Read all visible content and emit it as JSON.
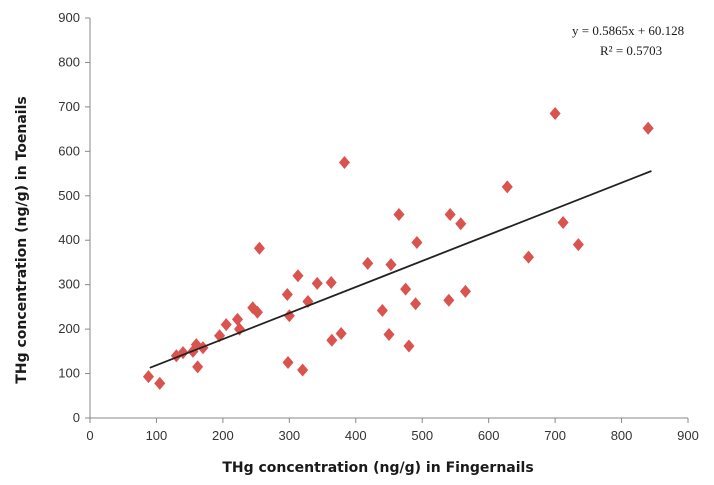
{
  "chart_data": {
    "type": "scatter",
    "xlabel": "THg concentration (ng/g) in Fingernails",
    "ylabel": "THg concentration (ng/g) in Toenails",
    "xlim": [
      0,
      900
    ],
    "ylim": [
      0,
      900
    ],
    "xticks": [
      "0",
      "100",
      "200",
      "300",
      "400",
      "500",
      "600",
      "700",
      "800",
      "900"
    ],
    "yticks": [
      "0",
      "100",
      "200",
      "300",
      "400",
      "500",
      "600",
      "700",
      "800",
      "900"
    ],
    "grid": false,
    "marker_color": "#d9534f",
    "trendline": {
      "slope": 0.5865,
      "intercept": 60.128,
      "x_range": [
        90,
        845
      ],
      "equation": "y = 0.5865x  + 60.128",
      "r_squared": "R² = 0.5703"
    },
    "points": [
      {
        "x": 88,
        "y": 93
      },
      {
        "x": 105,
        "y": 78
      },
      {
        "x": 130,
        "y": 140
      },
      {
        "x": 140,
        "y": 147
      },
      {
        "x": 155,
        "y": 150
      },
      {
        "x": 160,
        "y": 165
      },
      {
        "x": 162,
        "y": 115
      },
      {
        "x": 170,
        "y": 158
      },
      {
        "x": 195,
        "y": 185
      },
      {
        "x": 205,
        "y": 210
      },
      {
        "x": 222,
        "y": 222
      },
      {
        "x": 225,
        "y": 200
      },
      {
        "x": 245,
        "y": 248
      },
      {
        "x": 252,
        "y": 238
      },
      {
        "x": 255,
        "y": 382
      },
      {
        "x": 297,
        "y": 278
      },
      {
        "x": 298,
        "y": 125
      },
      {
        "x": 300,
        "y": 230
      },
      {
        "x": 313,
        "y": 320
      },
      {
        "x": 320,
        "y": 108
      },
      {
        "x": 328,
        "y": 262
      },
      {
        "x": 342,
        "y": 303
      },
      {
        "x": 363,
        "y": 305
      },
      {
        "x": 364,
        "y": 175
      },
      {
        "x": 378,
        "y": 190
      },
      {
        "x": 383,
        "y": 575
      },
      {
        "x": 418,
        "y": 348
      },
      {
        "x": 440,
        "y": 242
      },
      {
        "x": 450,
        "y": 188
      },
      {
        "x": 453,
        "y": 345
      },
      {
        "x": 465,
        "y": 458
      },
      {
        "x": 475,
        "y": 290
      },
      {
        "x": 480,
        "y": 162
      },
      {
        "x": 490,
        "y": 257
      },
      {
        "x": 492,
        "y": 395
      },
      {
        "x": 540,
        "y": 265
      },
      {
        "x": 542,
        "y": 458
      },
      {
        "x": 558,
        "y": 437
      },
      {
        "x": 565,
        "y": 285
      },
      {
        "x": 628,
        "y": 520
      },
      {
        "x": 660,
        "y": 362
      },
      {
        "x": 700,
        "y": 685
      },
      {
        "x": 712,
        "y": 440
      },
      {
        "x": 735,
        "y": 390
      },
      {
        "x": 840,
        "y": 652
      }
    ]
  }
}
